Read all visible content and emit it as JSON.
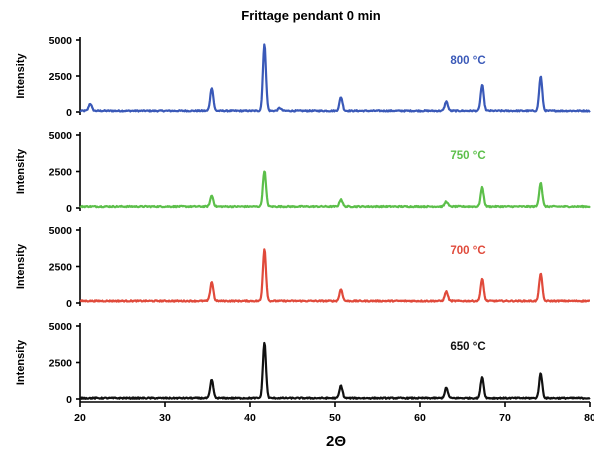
{
  "chart_data": {
    "type": "line",
    "title": "Frittage pendant 0 min",
    "xlabel": "2Θ",
    "ylabel": "Intensity",
    "xlim": [
      20,
      80
    ],
    "xticks": [
      "20",
      "30",
      "40",
      "50",
      "60",
      "70",
      "80"
    ],
    "ylim": [
      0,
      5000
    ],
    "yticks": [
      "0",
      "2500",
      "5000"
    ],
    "grid": false,
    "series": [
      {
        "name": "800 °C",
        "color": "#3a59b8",
        "baseline": 80,
        "peaks": [
          [
            21.2,
            500
          ],
          [
            35.5,
            1600
          ],
          [
            41.7,
            4600
          ],
          [
            43.5,
            200
          ],
          [
            50.7,
            950
          ],
          [
            63.1,
            650
          ],
          [
            67.3,
            1800
          ],
          [
            74.2,
            2400
          ]
        ]
      },
      {
        "name": "750 °C",
        "color": "#5cbf4a",
        "baseline": 100,
        "peaks": [
          [
            35.5,
            750
          ],
          [
            41.7,
            2450
          ],
          [
            50.7,
            500
          ],
          [
            63.1,
            350
          ],
          [
            67.3,
            1300
          ],
          [
            74.2,
            1650
          ]
        ]
      },
      {
        "name": "700 °C",
        "color": "#e04a3b",
        "baseline": 140,
        "peaks": [
          [
            35.5,
            1300
          ],
          [
            41.7,
            3550
          ],
          [
            50.7,
            800
          ],
          [
            63.1,
            650
          ],
          [
            67.3,
            1500
          ],
          [
            74.2,
            1900
          ]
        ]
      },
      {
        "name": "650 °C",
        "color": "#111111",
        "baseline": 60,
        "peaks": [
          [
            35.5,
            1250
          ],
          [
            41.7,
            3800
          ],
          [
            50.7,
            850
          ],
          [
            63.1,
            700
          ],
          [
            67.3,
            1450
          ],
          [
            74.2,
            1700
          ]
        ]
      }
    ]
  }
}
